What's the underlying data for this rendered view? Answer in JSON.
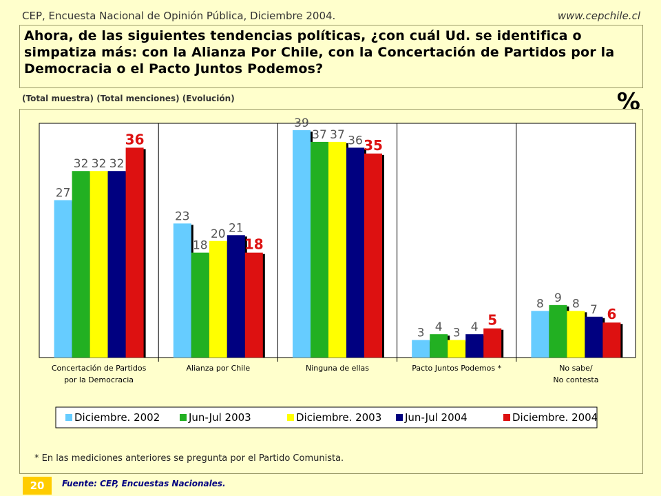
{
  "header": {
    "left": "CEP, Encuesta Nacional de Opinión Pública, Diciembre 2004.",
    "right": "www.cepchile.cl"
  },
  "question": "Ahora, de las siguientes tendencias políticas, ¿con cuál Ud. se identifica o simpatiza más: con la Alianza Por Chile, con la Concertación de Partidos por la Democracia o el Pacto Juntos Podemos?",
  "subtitle": "(Total muestra) (Total menciones) (Evolución)",
  "unit_symbol": "%",
  "footnote": "* En las mediciones anteriores se pregunta por el Partido Comunista.",
  "page_number": "20",
  "source": "Fuente: CEP, Encuestas Nacionales.",
  "chart_data": {
    "type": "bar",
    "categories": [
      [
        "Concertación de Partidos",
        "por la Democracia"
      ],
      [
        "Alianza por Chile"
      ],
      [
        "Ninguna de ellas"
      ],
      [
        "Pacto Juntos Podemos *"
      ],
      [
        "No sabe/",
        "No contesta"
      ]
    ],
    "series": [
      {
        "name": "Diciembre. 2002",
        "color": "#66ccff",
        "values": [
          27,
          23,
          39,
          3,
          8
        ]
      },
      {
        "name": "Jun-Jul 2003",
        "color": "#22b022",
        "values": [
          32,
          18,
          37,
          4,
          9
        ]
      },
      {
        "name": "Diciembre. 2003",
        "color": "#ffff00",
        "values": [
          32,
          20,
          37,
          3,
          8
        ]
      },
      {
        "name": "Jun-Jul 2004",
        "color": "#000080",
        "values": [
          32,
          21,
          36,
          4,
          7
        ]
      },
      {
        "name": "Diciembre. 2004",
        "color": "#dd1111",
        "values": [
          36,
          18,
          35,
          5,
          6
        ]
      }
    ],
    "highlight_label_color": "#dd1111",
    "ylim": [
      0,
      40
    ],
    "grid": false,
    "legend_position": "bottom"
  }
}
